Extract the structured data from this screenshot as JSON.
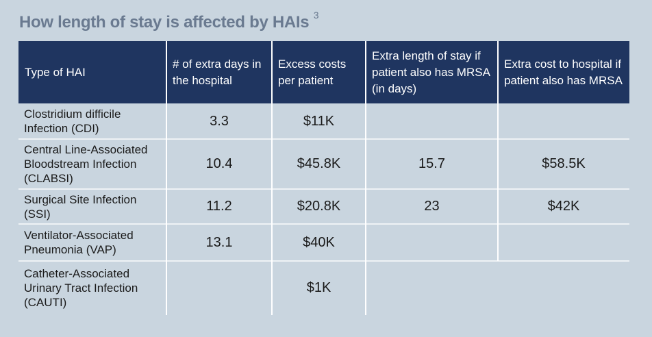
{
  "title": "How length of stay is affected by HAIs",
  "title_superscript": "3",
  "table": {
    "header": [
      "Type of HAI",
      "# of extra days in the hospital",
      "Excess costs per patient",
      "Extra length of stay if patient also has MRSA (in days)",
      "Extra cost to hospital if patient also has MRSA"
    ],
    "rows": [
      [
        "Clostridium difficile Infection (CDI)",
        "3.3",
        "$11K",
        null,
        null
      ],
      [
        "Central Line-Associated Bloodstream Infection (CLABSI)",
        "10.4",
        "$45.8K",
        "15.7",
        "$58.5K"
      ],
      [
        "Surgical Site Infection (SSI)",
        "11.2",
        "$20.8K",
        "23",
        "$42K"
      ],
      [
        "Ventilator-Associated Pneumonia (VAP)",
        "13.1",
        "$40K",
        null,
        null
      ],
      [
        "Catheter-Associated Urinary Tract Infection (CAUTI)",
        null,
        "$1K",
        null,
        null
      ]
    ]
  }
}
